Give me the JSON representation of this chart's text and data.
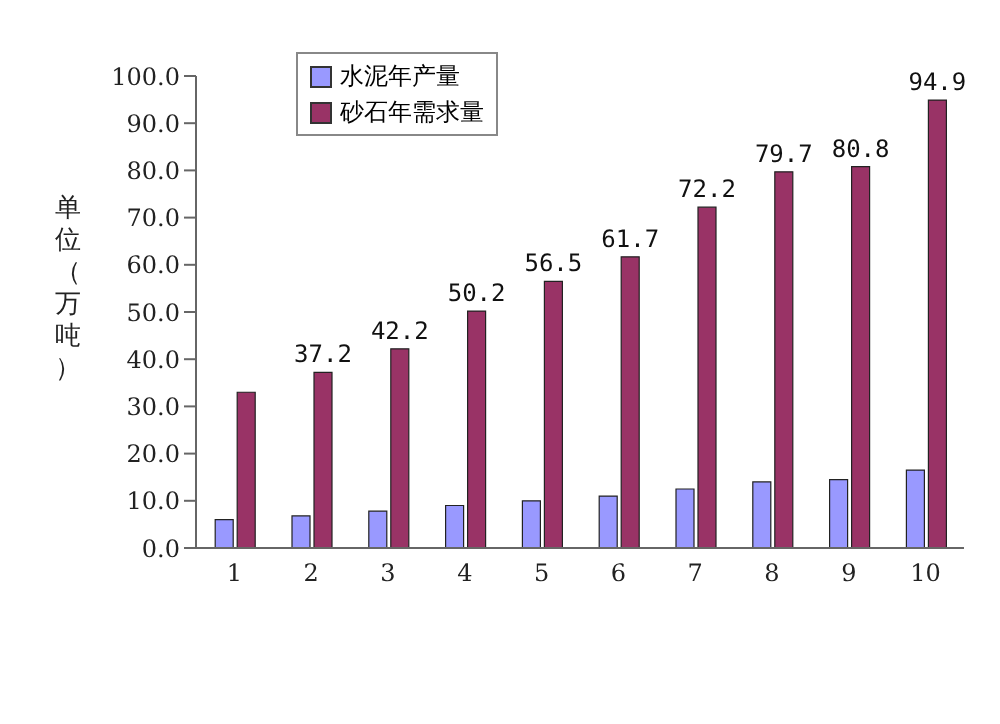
{
  "chart_data": {
    "type": "bar",
    "ylabel": "单位（万吨）",
    "categories": [
      "1",
      "2",
      "3",
      "4",
      "5",
      "6",
      "7",
      "8",
      "9",
      "10"
    ],
    "series": [
      {
        "name": "水泥年产量",
        "color": "#9999ff",
        "values": [
          6,
          6.8,
          7.8,
          9,
          10,
          11,
          12.5,
          14,
          14.5,
          16.5
        ]
      },
      {
        "name": "砂石年需求量",
        "color": "#993366",
        "values": [
          33,
          37.2,
          42.2,
          50.2,
          56.5,
          61.7,
          72.2,
          79.7,
          80.8,
          94.9
        ],
        "value_labels": [
          null,
          "37.2",
          "42.2",
          "50.2",
          "56.5",
          "61.7",
          "72.2",
          "79.7",
          "80.8",
          "94.9"
        ]
      }
    ],
    "ylim": [
      0,
      100
    ],
    "yticks": [
      {
        "value": 0,
        "label": "0.0"
      },
      {
        "value": 10,
        "label": "10.0"
      },
      {
        "value": 20,
        "label": "20.0"
      },
      {
        "value": 30,
        "label": "30.0"
      },
      {
        "value": 40,
        "label": "40.0"
      },
      {
        "value": 50,
        "label": "50.0"
      },
      {
        "value": 60,
        "label": "60.0"
      },
      {
        "value": 70,
        "label": "70.0"
      },
      {
        "value": 80,
        "label": "80.0"
      },
      {
        "value": 90,
        "label": "90.0"
      },
      {
        "value": 100,
        "label": "100.0"
      }
    ],
    "legend": "top left",
    "grid": false
  }
}
